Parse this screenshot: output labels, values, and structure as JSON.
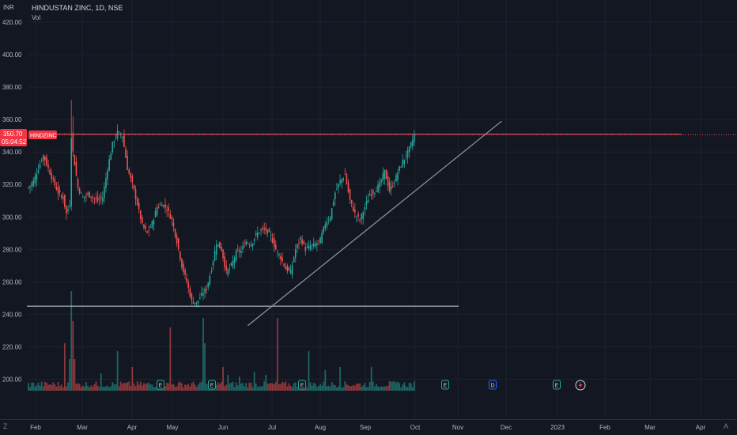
{
  "header": {
    "currency": "INR",
    "title": "HINDUSTAN ZINC, 1D, NSE",
    "indicator": "Vol",
    "corner_left": "Z",
    "corner_right": "A"
  },
  "price_tag": {
    "price": "350.70",
    "countdown": "05:04:52",
    "symbol": "HINDZINC"
  },
  "colors": {
    "background": "#131722",
    "up": "#26a69a",
    "down": "#ef5350",
    "trendline": "#9598a1",
    "resistance": "#f7525f",
    "grid": "#1e222d"
  },
  "event_markers": [
    "E",
    "E",
    "E",
    "E",
    "D",
    "E"
  ],
  "chart_data": {
    "type": "candlestick",
    "ylim": [
      188,
      428
    ],
    "y_ticks": [
      "420.00",
      "400.00",
      "380.00",
      "360.00",
      "340.00",
      "320.00",
      "300.00",
      "280.00",
      "260.00",
      "240.00",
      "220.00",
      "200.00"
    ],
    "x_ticks": [
      "Feb",
      "Mar",
      "Apr",
      "May",
      "Jun",
      "Jul",
      "Aug",
      "Sep",
      "Oct",
      "Nov",
      "Dec",
      "2023",
      "Feb",
      "Mar",
      "Apr"
    ],
    "close_path": [
      [
        0,
        318
      ],
      [
        3,
        322
      ],
      [
        6,
        330
      ],
      [
        9,
        338
      ],
      [
        12,
        330
      ],
      [
        15,
        322
      ],
      [
        18,
        315
      ],
      [
        21,
        312
      ],
      [
        23,
        302
      ],
      [
        25,
        308
      ],
      [
        26,
        350
      ],
      [
        27,
        340
      ],
      [
        30,
        318
      ],
      [
        33,
        312
      ],
      [
        36,
        314
      ],
      [
        39,
        312
      ],
      [
        42,
        310
      ],
      [
        45,
        312
      ],
      [
        48,
        330
      ],
      [
        51,
        345
      ],
      [
        54,
        352
      ],
      [
        57,
        350
      ],
      [
        60,
        330
      ],
      [
        63,
        320
      ],
      [
        66,
        308
      ],
      [
        69,
        295
      ],
      [
        72,
        290
      ],
      [
        75,
        296
      ],
      [
        78,
        306
      ],
      [
        81,
        308
      ],
      [
        84,
        305
      ],
      [
        87,
        298
      ],
      [
        90,
        285
      ],
      [
        93,
        270
      ],
      [
        96,
        260
      ],
      [
        99,
        248
      ],
      [
        102,
        247
      ],
      [
        105,
        252
      ],
      [
        108,
        256
      ],
      [
        111,
        268
      ],
      [
        114,
        284
      ],
      [
        117,
        280
      ],
      [
        120,
        266
      ],
      [
        123,
        270
      ],
      [
        126,
        278
      ],
      [
        129,
        279
      ],
      [
        132,
        285
      ],
      [
        135,
        283
      ],
      [
        138,
        289
      ],
      [
        141,
        292
      ],
      [
        144,
        292
      ],
      [
        147,
        288
      ],
      [
        150,
        280
      ],
      [
        153,
        275
      ],
      [
        156,
        268
      ],
      [
        159,
        266
      ],
      [
        162,
        280
      ],
      [
        165,
        287
      ],
      [
        168,
        280
      ],
      [
        171,
        282
      ],
      [
        174,
        283
      ],
      [
        177,
        286
      ],
      [
        180,
        296
      ],
      [
        183,
        300
      ],
      [
        186,
        315
      ],
      [
        189,
        322
      ],
      [
        192,
        326
      ],
      [
        195,
        310
      ],
      [
        198,
        302
      ],
      [
        201,
        298
      ],
      [
        204,
        306
      ],
      [
        207,
        314
      ],
      [
        210,
        316
      ],
      [
        213,
        320
      ],
      [
        216,
        328
      ],
      [
        219,
        316
      ],
      [
        222,
        322
      ],
      [
        225,
        330
      ],
      [
        228,
        336
      ],
      [
        231,
        342
      ],
      [
        234,
        350
      ]
    ],
    "volume_spikes": [
      [
        22,
        60
      ],
      [
        25,
        40
      ],
      [
        26,
        126
      ],
      [
        27,
        88
      ],
      [
        28,
        40
      ],
      [
        44,
        22
      ],
      [
        54,
        50
      ],
      [
        63,
        30
      ],
      [
        86,
        80
      ],
      [
        106,
        92
      ],
      [
        107,
        60
      ],
      [
        118,
        30
      ],
      [
        121,
        20
      ],
      [
        128,
        18
      ],
      [
        137,
        24
      ],
      [
        144,
        20
      ],
      [
        151,
        92
      ],
      [
        170,
        50
      ],
      [
        180,
        26
      ],
      [
        189,
        30
      ],
      [
        208,
        30
      ],
      [
        219,
        12
      ]
    ],
    "horizontal_levels": [
      {
        "name": "resistance",
        "price": 351
      },
      {
        "name": "support",
        "price": 245
      }
    ],
    "trendline": {
      "from_bar": 133,
      "from_price": 233,
      "to_bar": 287,
      "to_price": 359
    }
  }
}
